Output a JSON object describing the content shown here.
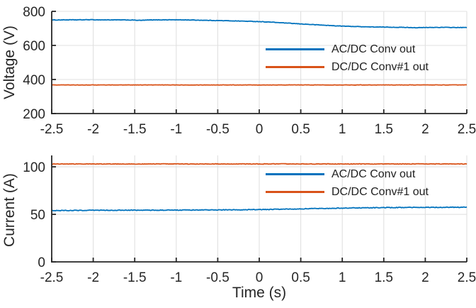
{
  "figure": {
    "background": "#ffffff",
    "axis_color": "#262626",
    "grid_color": "#e0e0e0",
    "text_color": "#262626"
  },
  "chart_data": [
    {
      "type": "line",
      "title": "",
      "xlabel": "",
      "ylabel": "Voltage (V)",
      "xlim": [
        -2.5,
        2.5
      ],
      "ylim": [
        200,
        800
      ],
      "xtick_labels": [
        "-2.5",
        "-2",
        "-1.5",
        "-1",
        "-0.5",
        "0",
        "0.5",
        "1",
        "1.5",
        "2",
        "2.5"
      ],
      "ytick_labels": [
        "200",
        "400",
        "600",
        "800"
      ],
      "grid": true,
      "legend_position": "middle-right",
      "series": [
        {
          "name": "AC/DC Conv out",
          "color": "#0072BD",
          "noise": 1.3,
          "x": [
            -2.5,
            -2.35,
            -2.2,
            -2.05,
            -1.9,
            -1.75,
            -1.6,
            -1.5,
            -1.43,
            -1.35,
            -1.2,
            -1.05,
            -0.95,
            -0.85,
            -0.75,
            -0.65,
            -0.55,
            -0.45,
            -0.3,
            -0.15,
            0,
            0.15,
            0.3,
            0.45,
            0.6,
            0.75,
            0.9,
            1.05,
            1.2,
            1.35,
            1.5,
            1.65,
            1.8,
            1.9,
            2,
            2.15,
            2.3,
            2.4,
            2.5
          ],
          "y": [
            749,
            750,
            750,
            751,
            750,
            750,
            749.5,
            748.5,
            747,
            749,
            750,
            750.5,
            750,
            749.5,
            748.5,
            747.5,
            746.5,
            745.5,
            744,
            742,
            740,
            736.5,
            732,
            727.5,
            723.5,
            719.5,
            715.5,
            712.5,
            710.5,
            708.5,
            707.5,
            706.5,
            705.5,
            704,
            705,
            706,
            705.5,
            705,
            705
          ]
        },
        {
          "name": "DC/DC Conv#1 out",
          "color": "#D95319",
          "noise": 1.0,
          "x": [
            -2.5,
            2.5
          ],
          "y": [
            368,
            368
          ]
        }
      ]
    },
    {
      "type": "line",
      "title": "",
      "xlabel": "Time (s)",
      "ylabel": "Current (A)",
      "xlim": [
        -2.5,
        2.5
      ],
      "ylim": [
        0,
        112
      ],
      "xtick_labels": [
        "-2.5",
        "-2",
        "-1.5",
        "-1",
        "-0.5",
        "0",
        "0.5",
        "1",
        "1.5",
        "2",
        "2.5"
      ],
      "ytick_labels": [
        "0",
        "50",
        "100"
      ],
      "grid": true,
      "legend_position": "upper-right",
      "series": [
        {
          "name": "AC/DC Conv out",
          "color": "#0072BD",
          "noise": 0.35,
          "x": [
            -2.5,
            -2.1,
            -1.7,
            -1.3,
            -0.9,
            -0.5,
            -0.2,
            0,
            0.2,
            0.5,
            0.8,
            1.1,
            1.4,
            1.7,
            2,
            2.25,
            2.5
          ],
          "y": [
            54,
            54.2,
            54.3,
            54.4,
            54.5,
            54.7,
            54.8,
            55,
            55.3,
            55.8,
            56.3,
            56.7,
            57,
            57.2,
            57.3,
            57.4,
            57.5
          ]
        },
        {
          "name": "DC/DC Conv#1 out",
          "color": "#D95319",
          "noise": 0.3,
          "x": [
            -2.5,
            2.5
          ],
          "y": [
            103,
            103
          ]
        }
      ]
    }
  ]
}
